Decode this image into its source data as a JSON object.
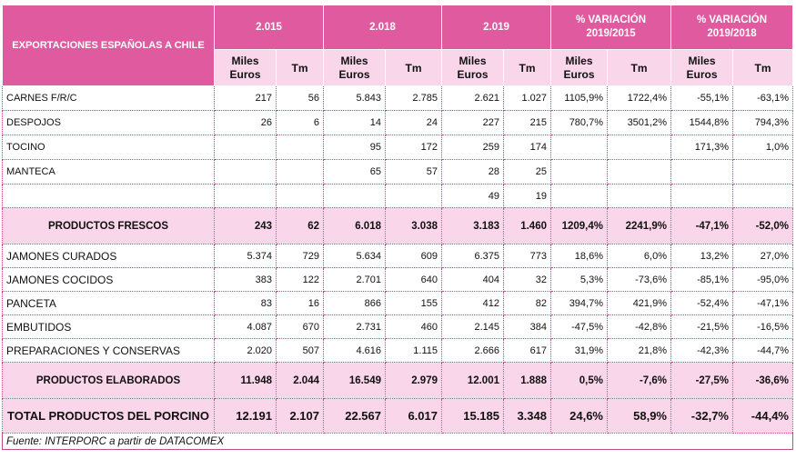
{
  "table": {
    "title": "EXPORTACIONES ESPAÑOLAS A CHILE",
    "periods": [
      "2.015",
      "2.018",
      "2.019",
      "% VARIACIÓN 2019/2015",
      "% VARIACIÓN 2019/2018"
    ],
    "sub_headers": [
      "Miles Euros",
      "Tm",
      "Miles Euros",
      "Tm",
      "Miles Euros",
      "Tm",
      "Miles Euros",
      "Tm",
      "Miles Euros",
      "Tm"
    ],
    "rows": [
      {
        "label": "CARNES F/R/C",
        "values": [
          "217",
          "56",
          "5.843",
          "2.785",
          "2.621",
          "1.027",
          "1105,9%",
          "1722,4%",
          "-55,1%",
          "-63,1%"
        ]
      },
      {
        "label": "DESPOJOS",
        "values": [
          "26",
          "6",
          "14",
          "24",
          "227",
          "215",
          "780,7%",
          "3501,2%",
          "1544,8%",
          "794,3%"
        ]
      },
      {
        "label": "TOCINO",
        "values": [
          "",
          "",
          "95",
          "172",
          "259",
          "174",
          "",
          "",
          "171,3%",
          "1,0%"
        ]
      },
      {
        "label": "MANTECA",
        "values": [
          "",
          "",
          "65",
          "57",
          "28",
          "25",
          "",
          "",
          "",
          ""
        ]
      },
      {
        "label": "",
        "values": [
          "",
          "",
          "",
          "",
          "49",
          "19",
          "",
          "",
          "",
          ""
        ]
      },
      {
        "label": "PRODUCTOS FRESCOS",
        "values": [
          "243",
          "62",
          "6.018",
          "3.038",
          "3.183",
          "1.460",
          "1209,4%",
          "2241,9%",
          "-47,1%",
          "-52,0%"
        ]
      },
      {
        "label": "JAMONES CURADOS",
        "values": [
          "5.374",
          "729",
          "5.634",
          "609",
          "6.375",
          "773",
          "18,6%",
          "6,0%",
          "13,2%",
          "27,0%"
        ]
      },
      {
        "label": "JAMONES COCIDOS",
        "values": [
          "383",
          "122",
          "2.701",
          "640",
          "404",
          "32",
          "5,3%",
          "-73,6%",
          "-85,1%",
          "-95,0%"
        ]
      },
      {
        "label": "PANCETA",
        "values": [
          "83",
          "16",
          "866",
          "155",
          "412",
          "82",
          "394,7%",
          "421,9%",
          "-52,4%",
          "-47,1%"
        ]
      },
      {
        "label": "EMBUTIDOS",
        "values": [
          "4.087",
          "670",
          "2.731",
          "460",
          "2.145",
          "384",
          "-47,5%",
          "-42,8%",
          "-21,5%",
          "-16,5%"
        ]
      },
      {
        "label": "PREPARACIONES Y CONSERVAS",
        "values": [
          "2.020",
          "507",
          "4.616",
          "1.115",
          "2.666",
          "617",
          "31,9%",
          "21,8%",
          "-42,3%",
          "-44,7%"
        ]
      },
      {
        "label": "PRODUCTOS ELABORADOS",
        "values": [
          "11.948",
          "2.044",
          "16.549",
          "2.979",
          "12.001",
          "1.888",
          "0,5%",
          "-7,6%",
          "-27,5%",
          "-36,6%"
        ]
      },
      {
        "label": "TOTAL PRODUCTOS DEL PORCINO",
        "values": [
          "12.191",
          "2.107",
          "22.567",
          "6.017",
          "15.185",
          "3.348",
          "24,6%",
          "58,9%",
          "-32,7%",
          "-44,4%"
        ]
      }
    ],
    "footer": "Fuente: INTERPORC a partir de DATACOMEX"
  },
  "colors": {
    "header_bg": "#e05a9f",
    "subheader_bg": "#f9d6ea",
    "border": "#c44a8c"
  }
}
